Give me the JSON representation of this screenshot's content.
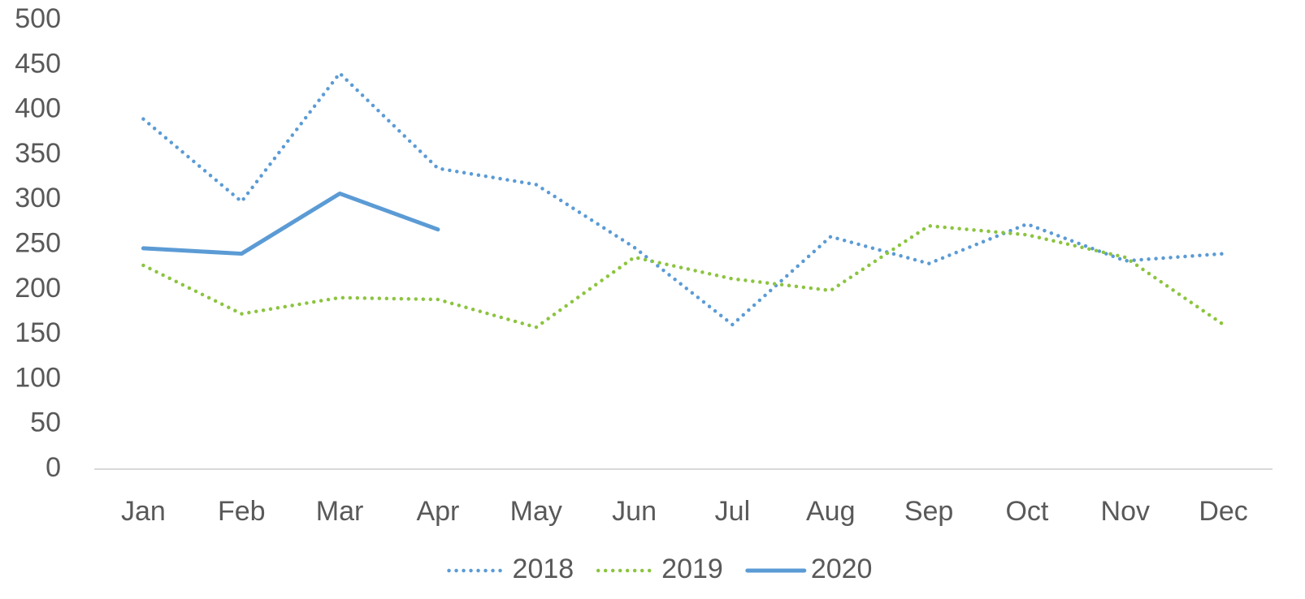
{
  "chart_data": {
    "type": "line",
    "categories": [
      "Jan",
      "Feb",
      "Mar",
      "Apr",
      "May",
      "Jun",
      "Jul",
      "Aug",
      "Sep",
      "Oct",
      "Nov",
      "Dec"
    ],
    "series": [
      {
        "name": "2018",
        "color": "#5b9bd5",
        "style": "dotted",
        "values": [
          390,
          298,
          441,
          335,
          317,
          247,
          161,
          259,
          229,
          273,
          232,
          240
        ]
      },
      {
        "name": "2019",
        "color": "#8cc43f",
        "style": "dotted",
        "values": [
          227,
          173,
          191,
          189,
          158,
          236,
          212,
          199,
          271,
          261,
          236,
          161
        ]
      },
      {
        "name": "2020",
        "color": "#5b9bd5",
        "style": "solid",
        "values": [
          246,
          240,
          307,
          267,
          null,
          null,
          null,
          null,
          null,
          null,
          null,
          null
        ]
      }
    ],
    "ylim": [
      0,
      500
    ],
    "yticks": [
      0,
      50,
      100,
      150,
      200,
      250,
      300,
      350,
      400,
      450,
      500
    ],
    "grid": false,
    "legend": "bottom"
  }
}
